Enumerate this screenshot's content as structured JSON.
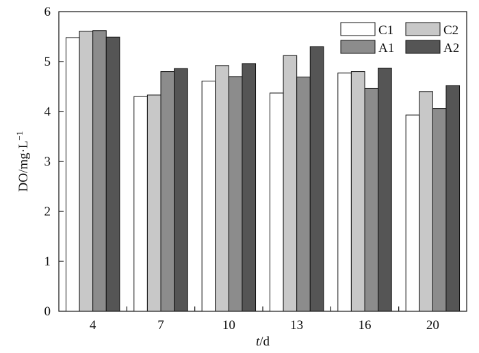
{
  "chart_data": {
    "type": "bar",
    "xlabel_italic": "t",
    "xlabel_rest": "/d",
    "ylabel": "DO/mg·L",
    "ylabel_sup": "−1",
    "categories": [
      "4",
      "7",
      "10",
      "13",
      "16",
      "20"
    ],
    "ylim": [
      0,
      6
    ],
    "yticks": [
      "0",
      "1",
      "2",
      "3",
      "4",
      "5",
      "6"
    ],
    "legend_position": "top-right",
    "grid": false,
    "series": [
      {
        "name": "C1",
        "color": "#ffffff",
        "values": [
          5.48,
          4.3,
          4.61,
          4.37,
          4.77,
          3.93
        ]
      },
      {
        "name": "C2",
        "color": "#c8c8c8",
        "values": [
          5.61,
          4.33,
          4.92,
          5.12,
          4.8,
          4.4
        ]
      },
      {
        "name": "A1",
        "color": "#8c8c8c",
        "values": [
          5.62,
          4.8,
          4.7,
          4.69,
          4.46,
          4.06
        ]
      },
      {
        "name": "A2",
        "color": "#555555",
        "values": [
          5.49,
          4.86,
          4.96,
          5.3,
          4.87,
          4.52
        ]
      }
    ]
  }
}
